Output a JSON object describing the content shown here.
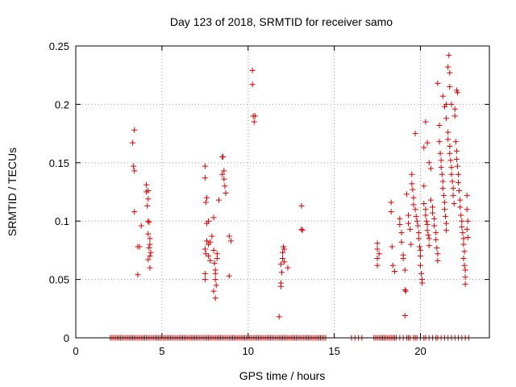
{
  "chart_data": {
    "type": "scatter",
    "title": "Day 123 of 2018, SRMTID for receiver samo",
    "xlabel": "GPS time / hours",
    "ylabel": "SRMTID / TECUs",
    "xlim": [
      0,
      24
    ],
    "ylim": [
      0,
      0.25
    ],
    "xticks": [
      0,
      5,
      10,
      15,
      20
    ],
    "xtick_labels": [
      "0",
      "5",
      "10",
      "15",
      "20"
    ],
    "yticks": [
      0,
      0.05,
      0.1,
      0.15,
      0.2,
      0.25
    ],
    "ytick_labels": [
      "0",
      "0.05",
      "0.1",
      "0.15",
      "0.2",
      "0.25"
    ],
    "grid": true,
    "marker": "+",
    "color": "#dd0000",
    "series": [
      {
        "name": "SRMTID",
        "points": [
          [
            3.3,
            0.167
          ],
          [
            3.4,
            0.178
          ],
          [
            3.35,
            0.147
          ],
          [
            3.4,
            0.143
          ],
          [
            3.4,
            0.108
          ],
          [
            3.6,
            0.054
          ],
          [
            3.6,
            0.078
          ],
          [
            3.7,
            0.078
          ],
          [
            3.8,
            0.096
          ],
          [
            4.1,
            0.131
          ],
          [
            4.1,
            0.125
          ],
          [
            4.2,
            0.126
          ],
          [
            4.2,
            0.119
          ],
          [
            4.15,
            0.113
          ],
          [
            4.2,
            0.1
          ],
          [
            4.25,
            0.099
          ],
          [
            4.2,
            0.089
          ],
          [
            4.3,
            0.085
          ],
          [
            4.3,
            0.08
          ],
          [
            4.25,
            0.077
          ],
          [
            4.35,
            0.073
          ],
          [
            4.3,
            0.07
          ],
          [
            4.2,
            0.067
          ],
          [
            4.3,
            0.06
          ],
          [
            7.5,
            0.147
          ],
          [
            7.5,
            0.137
          ],
          [
            7.6,
            0.12
          ],
          [
            7.55,
            0.116
          ],
          [
            7.6,
            0.098
          ],
          [
            7.7,
            0.1
          ],
          [
            7.6,
            0.083
          ],
          [
            7.7,
            0.08
          ],
          [
            7.8,
            0.082
          ],
          [
            7.5,
            0.076
          ],
          [
            7.55,
            0.072
          ],
          [
            7.7,
            0.07
          ],
          [
            7.8,
            0.066
          ],
          [
            7.5,
            0.055
          ],
          [
            7.5,
            0.05
          ],
          [
            7.9,
            0.087
          ],
          [
            8.0,
            0.103
          ],
          [
            8.0,
            0.075
          ],
          [
            8.05,
            0.064
          ],
          [
            8.1,
            0.058
          ],
          [
            8.1,
            0.055
          ],
          [
            8.1,
            0.05
          ],
          [
            8.15,
            0.045
          ],
          [
            8.0,
            0.04
          ],
          [
            8.1,
            0.034
          ],
          [
            8.2,
            0.068
          ],
          [
            8.2,
            0.072
          ],
          [
            8.3,
            0.118
          ],
          [
            8.5,
            0.155
          ],
          [
            8.55,
            0.155
          ],
          [
            8.5,
            0.14
          ],
          [
            8.6,
            0.136
          ],
          [
            8.65,
            0.13
          ],
          [
            8.7,
            0.124
          ],
          [
            8.6,
            0.143
          ],
          [
            8.9,
            0.087
          ],
          [
            9.0,
            0.083
          ],
          [
            8.9,
            0.053
          ],
          [
            10.25,
            0.229
          ],
          [
            10.25,
            0.217
          ],
          [
            10.3,
            0.19
          ],
          [
            10.35,
            0.185
          ],
          [
            10.4,
            0.19
          ],
          [
            11.8,
            0.018
          ],
          [
            11.9,
            0.044
          ],
          [
            11.9,
            0.047
          ],
          [
            11.95,
            0.056
          ],
          [
            11.9,
            0.063
          ],
          [
            12.0,
            0.068
          ],
          [
            12.0,
            0.073
          ],
          [
            12.05,
            0.078
          ],
          [
            12.1,
            0.076
          ],
          [
            12.1,
            0.065
          ],
          [
            12.3,
            0.06
          ],
          [
            13.1,
            0.113
          ],
          [
            13.1,
            0.093
          ],
          [
            13.15,
            0.092
          ],
          [
            17.5,
            0.081
          ],
          [
            17.5,
            0.076
          ],
          [
            17.6,
            0.072
          ],
          [
            17.5,
            0.068
          ],
          [
            17.5,
            0.062
          ],
          [
            18.3,
            0.116
          ],
          [
            18.3,
            0.108
          ],
          [
            18.35,
            0.078
          ],
          [
            18.4,
            0.062
          ],
          [
            18.5,
            0.057
          ],
          [
            18.8,
            0.102
          ],
          [
            18.8,
            0.097
          ],
          [
            18.9,
            0.09
          ],
          [
            18.9,
            0.082
          ],
          [
            19.0,
            0.071
          ],
          [
            19.0,
            0.068
          ],
          [
            19.1,
            0.058
          ],
          [
            19.1,
            0.041
          ],
          [
            19.15,
            0.04
          ],
          [
            19.1,
            0.019
          ],
          [
            19.2,
            0.123
          ],
          [
            19.3,
            0.105
          ],
          [
            19.3,
            0.098
          ],
          [
            19.4,
            0.093
          ],
          [
            19.45,
            0.08
          ],
          [
            19.5,
            0.14
          ],
          [
            19.5,
            0.132
          ],
          [
            19.55,
            0.127
          ],
          [
            19.6,
            0.12
          ],
          [
            19.6,
            0.114
          ],
          [
            19.7,
            0.175
          ],
          [
            19.7,
            0.11
          ],
          [
            19.75,
            0.104
          ],
          [
            19.8,
            0.1
          ],
          [
            19.85,
            0.096
          ],
          [
            19.9,
            0.09
          ],
          [
            19.9,
            0.085
          ],
          [
            19.95,
            0.078
          ],
          [
            20.0,
            0.075
          ],
          [
            20.0,
            0.07
          ],
          [
            20.0,
            0.062
          ],
          [
            20.05,
            0.055
          ],
          [
            20.1,
            0.05
          ],
          [
            20.1,
            0.047
          ],
          [
            20.2,
            0.13
          ],
          [
            20.2,
            0.115
          ],
          [
            20.3,
            0.11
          ],
          [
            20.3,
            0.105
          ],
          [
            20.35,
            0.1
          ],
          [
            20.4,
            0.097
          ],
          [
            20.4,
            0.092
          ],
          [
            20.45,
            0.088
          ],
          [
            20.5,
            0.085
          ],
          [
            20.5,
            0.079
          ],
          [
            20.2,
            0.163
          ],
          [
            20.3,
            0.185
          ],
          [
            20.4,
            0.167
          ],
          [
            20.5,
            0.15
          ],
          [
            20.6,
            0.145
          ],
          [
            20.6,
            0.118
          ],
          [
            20.7,
            0.112
          ],
          [
            20.7,
            0.107
          ],
          [
            20.8,
            0.102
          ],
          [
            20.8,
            0.096
          ],
          [
            20.9,
            0.09
          ],
          [
            20.9,
            0.084
          ],
          [
            20.95,
            0.077
          ],
          [
            21.0,
            0.072
          ],
          [
            21.0,
            0.066
          ],
          [
            21.0,
            0.218
          ],
          [
            21.1,
            0.182
          ],
          [
            21.1,
            0.168
          ],
          [
            21.15,
            0.158
          ],
          [
            21.2,
            0.152
          ],
          [
            21.2,
            0.146
          ],
          [
            21.25,
            0.14
          ],
          [
            21.3,
            0.134
          ],
          [
            21.3,
            0.128
          ],
          [
            21.35,
            0.122
          ],
          [
            21.4,
            0.116
          ],
          [
            21.4,
            0.11
          ],
          [
            21.45,
            0.104
          ],
          [
            21.5,
            0.098
          ],
          [
            21.5,
            0.092
          ],
          [
            21.3,
            0.207
          ],
          [
            21.4,
            0.198
          ],
          [
            21.5,
            0.2
          ],
          [
            21.5,
            0.188
          ],
          [
            21.6,
            0.176
          ],
          [
            21.6,
            0.17
          ],
          [
            21.7,
            0.164
          ],
          [
            21.7,
            0.158
          ],
          [
            21.75,
            0.152
          ],
          [
            21.8,
            0.146
          ],
          [
            21.8,
            0.14
          ],
          [
            21.85,
            0.134
          ],
          [
            21.9,
            0.128
          ],
          [
            21.9,
            0.122
          ],
          [
            21.95,
            0.115
          ],
          [
            21.6,
            0.232
          ],
          [
            21.65,
            0.242
          ],
          [
            21.7,
            0.227
          ],
          [
            21.7,
            0.215
          ],
          [
            21.8,
            0.2
          ],
          [
            22.0,
            0.196
          ],
          [
            22.0,
            0.19
          ],
          [
            22.05,
            0.168
          ],
          [
            22.1,
            0.16
          ],
          [
            22.1,
            0.153
          ],
          [
            22.15,
            0.147
          ],
          [
            22.2,
            0.14
          ],
          [
            22.2,
            0.133
          ],
          [
            22.25,
            0.126
          ],
          [
            22.3,
            0.118
          ],
          [
            22.1,
            0.212
          ],
          [
            22.15,
            0.21
          ],
          [
            22.3,
            0.112
          ],
          [
            22.35,
            0.105
          ],
          [
            22.4,
            0.1
          ],
          [
            22.4,
            0.095
          ],
          [
            22.45,
            0.09
          ],
          [
            22.5,
            0.085
          ],
          [
            22.5,
            0.08
          ],
          [
            22.55,
            0.074
          ],
          [
            22.5,
            0.068
          ],
          [
            22.55,
            0.062
          ],
          [
            22.6,
            0.058
          ],
          [
            22.6,
            0.052
          ],
          [
            22.6,
            0.046
          ],
          [
            22.7,
            0.122
          ],
          [
            22.7,
            0.11
          ],
          [
            22.75,
            0.1
          ],
          [
            22.7,
            0.093
          ],
          [
            22.75,
            0.086
          ]
        ],
        "zero_x": [
          2.0,
          2.1,
          2.2,
          2.3,
          2.4,
          2.5,
          2.6,
          2.7,
          2.8,
          2.9,
          3.0,
          3.1,
          3.2,
          3.3,
          3.4,
          3.5,
          3.6,
          3.7,
          3.8,
          3.9,
          4.0,
          4.1,
          4.2,
          4.3,
          4.4,
          4.5,
          4.6,
          4.7,
          4.8,
          4.9,
          5.0,
          5.1,
          5.2,
          5.3,
          5.4,
          5.5,
          5.6,
          5.7,
          5.8,
          5.9,
          6.0,
          6.1,
          6.2,
          6.3,
          6.4,
          6.5,
          6.6,
          6.7,
          6.8,
          6.9,
          7.0,
          7.1,
          7.2,
          7.3,
          7.4,
          7.5,
          7.6,
          7.7,
          7.8,
          7.9,
          8.0,
          8.1,
          8.2,
          8.3,
          8.4,
          8.5,
          8.6,
          8.7,
          8.8,
          8.9,
          9.0,
          9.1,
          9.2,
          9.3,
          9.4,
          9.5,
          9.6,
          9.7,
          9.8,
          9.9,
          10.0,
          10.1,
          10.2,
          10.3,
          10.4,
          10.5,
          10.6,
          10.7,
          10.8,
          10.9,
          11.0,
          11.1,
          11.2,
          11.3,
          11.4,
          11.5,
          11.6,
          11.7,
          11.8,
          11.9,
          12.0,
          12.1,
          12.2,
          12.3,
          12.4,
          12.5,
          12.6,
          12.7,
          12.8,
          12.9,
          13.0,
          13.1,
          13.2,
          13.3,
          13.4,
          13.5,
          13.6,
          13.7,
          13.8,
          13.9,
          14.0,
          14.1,
          14.2,
          14.3,
          14.4,
          14.5,
          16.0,
          16.2,
          16.4,
          16.6,
          17.3,
          17.4,
          17.5,
          17.6,
          17.7,
          17.8,
          17.9,
          18.0,
          18.1,
          18.2,
          18.3,
          18.4,
          18.5,
          18.6,
          18.8,
          19.0,
          19.2,
          19.3,
          19.4,
          19.6,
          19.7,
          19.8,
          20.0,
          20.2,
          20.3,
          20.5,
          20.7,
          20.9,
          21.0,
          21.2,
          21.4,
          21.6,
          21.8,
          22.0,
          22.2,
          22.4,
          22.6,
          22.8
        ]
      }
    ]
  }
}
